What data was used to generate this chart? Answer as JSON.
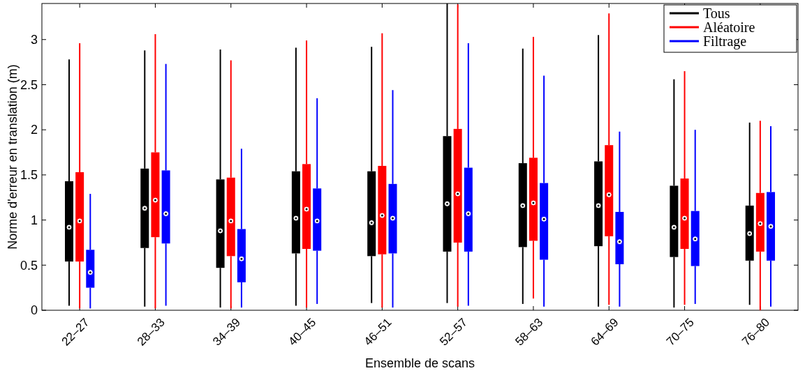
{
  "chart_data": {
    "type": "box",
    "xlabel": "Ensemble de scans",
    "ylabel": "Norme d'erreur en translation (m)",
    "categories": [
      "22–27",
      "28–33",
      "34–39",
      "40–45",
      "46–51",
      "52–57",
      "58–63",
      "64–69",
      "70–75",
      "76–80"
    ],
    "ylim": [
      0,
      3.4
    ],
    "yticks": [
      0,
      0.5,
      1,
      1.5,
      2,
      2.5,
      3
    ],
    "legend": "top right",
    "grid": false,
    "series": [
      {
        "name": "Tous",
        "color": "#000000",
        "boxes": [
          {
            "low": 0.05,
            "q1": 0.54,
            "median": 0.92,
            "q3": 1.43,
            "high": 2.78
          },
          {
            "low": 0.04,
            "q1": 0.69,
            "median": 1.13,
            "q3": 1.57,
            "high": 2.88
          },
          {
            "low": 0.03,
            "q1": 0.47,
            "median": 0.88,
            "q3": 1.45,
            "high": 2.89
          },
          {
            "low": 0.05,
            "q1": 0.63,
            "median": 1.02,
            "q3": 1.54,
            "high": 2.91
          },
          {
            "low": 0.08,
            "q1": 0.6,
            "median": 0.97,
            "q3": 1.54,
            "high": 2.92
          },
          {
            "low": 0.08,
            "q1": 0.65,
            "median": 1.18,
            "q3": 1.93,
            "high": 3.4
          },
          {
            "low": 0.07,
            "q1": 0.7,
            "median": 1.16,
            "q3": 1.63,
            "high": 2.9
          },
          {
            "low": 0.04,
            "q1": 0.71,
            "median": 1.16,
            "q3": 1.65,
            "high": 3.05
          },
          {
            "low": 0.03,
            "q1": 0.59,
            "median": 0.92,
            "q3": 1.38,
            "high": 2.56
          },
          {
            "low": 0.06,
            "q1": 0.55,
            "median": 0.85,
            "q3": 1.16,
            "high": 2.08
          }
        ]
      },
      {
        "name": "Aléatoire",
        "color": "#ff0000",
        "boxes": [
          {
            "low": 0.02,
            "q1": 0.54,
            "median": 0.99,
            "q3": 1.53,
            "high": 2.96
          },
          {
            "low": 0.02,
            "q1": 0.81,
            "median": 1.22,
            "q3": 1.75,
            "high": 3.06
          },
          {
            "low": 0.02,
            "q1": 0.6,
            "median": 0.99,
            "q3": 1.47,
            "high": 2.77
          },
          {
            "low": 0.03,
            "q1": 0.68,
            "median": 1.12,
            "q3": 1.62,
            "high": 2.99
          },
          {
            "low": 0.03,
            "q1": 0.62,
            "median": 1.05,
            "q3": 1.6,
            "high": 3.07
          },
          {
            "low": 0.04,
            "q1": 0.75,
            "median": 1.29,
            "q3": 2.01,
            "high": 3.39
          },
          {
            "low": 0.13,
            "q1": 0.77,
            "median": 1.19,
            "q3": 1.69,
            "high": 3.03
          },
          {
            "low": 0.06,
            "q1": 0.82,
            "median": 1.28,
            "q3": 1.83,
            "high": 3.29
          },
          {
            "low": 0.06,
            "q1": 0.68,
            "median": 1.02,
            "q3": 1.46,
            "high": 2.65
          },
          {
            "low": 0,
            "q1": 0.65,
            "median": 0.96,
            "q3": 1.3,
            "high": 2.1
          }
        ]
      },
      {
        "name": "Filtrage",
        "color": "#0000ff",
        "boxes": [
          {
            "low": 0.02,
            "q1": 0.25,
            "median": 0.42,
            "q3": 0.67,
            "high": 1.29
          },
          {
            "low": 0.05,
            "q1": 0.74,
            "median": 1.07,
            "q3": 1.55,
            "high": 2.73
          },
          {
            "low": 0.03,
            "q1": 0.31,
            "median": 0.57,
            "q3": 0.9,
            "high": 1.79
          },
          {
            "low": 0.07,
            "q1": 0.66,
            "median": 0.99,
            "q3": 1.35,
            "high": 2.35
          },
          {
            "low": 0.03,
            "q1": 0.63,
            "median": 1.02,
            "q3": 1.4,
            "high": 2.44
          },
          {
            "low": 0.05,
            "q1": 0.65,
            "median": 1.07,
            "q3": 1.58,
            "high": 2.96
          },
          {
            "low": 0.04,
            "q1": 0.56,
            "median": 1.01,
            "q3": 1.41,
            "high": 2.6
          },
          {
            "low": 0.04,
            "q1": 0.51,
            "median": 0.76,
            "q3": 1.09,
            "high": 1.98
          },
          {
            "low": 0.07,
            "q1": 0.49,
            "median": 0.79,
            "q3": 1.1,
            "high": 2.0
          },
          {
            "low": 0.04,
            "q1": 0.55,
            "median": 0.93,
            "q3": 1.31,
            "high": 2.04
          }
        ]
      }
    ]
  }
}
